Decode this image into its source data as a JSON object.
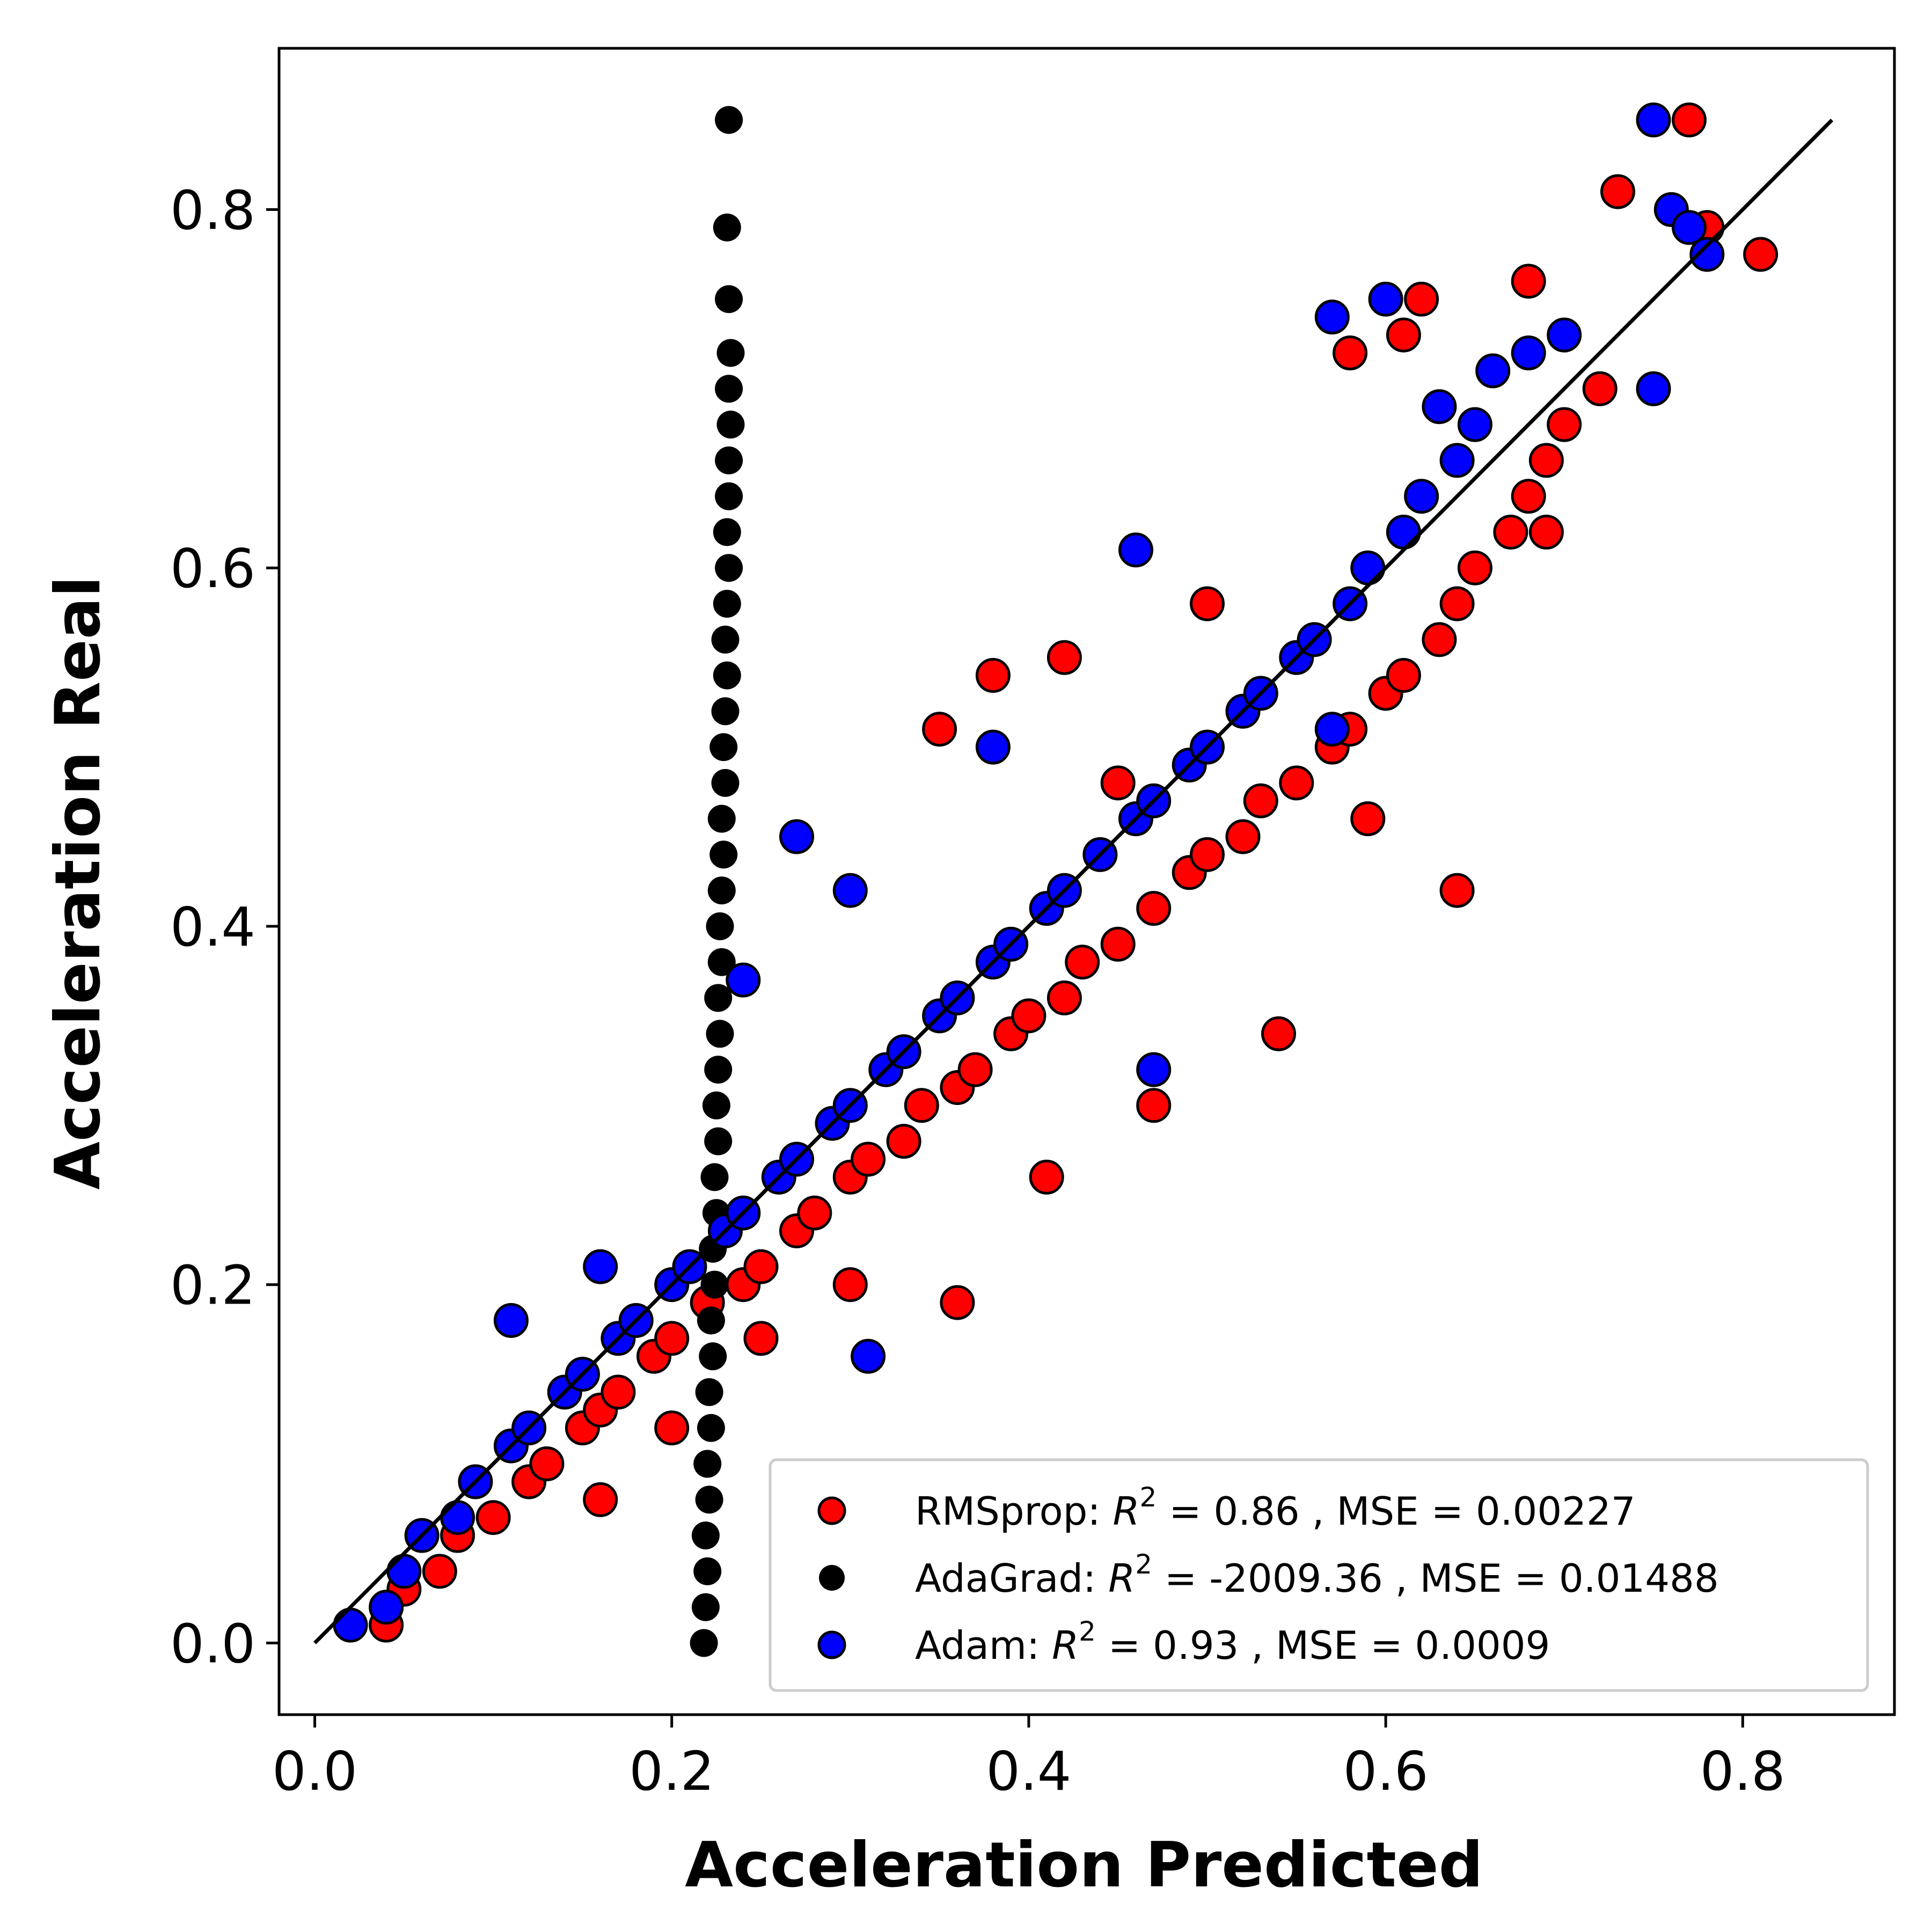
{
  "chart_data": {
    "type": "scatter",
    "xlabel": "Acceleration Predicted",
    "ylabel": "Acceleration Real",
    "xlim": [
      -0.02,
      0.885
    ],
    "ylim": [
      -0.04,
      0.89
    ],
    "xticks": [
      "0.0",
      "0.2",
      "0.4",
      "0.6",
      "0.8"
    ],
    "xtick_values": [
      0.0,
      0.2,
      0.4,
      0.6,
      0.8
    ],
    "yticks": [
      "0.0",
      "0.2",
      "0.4",
      "0.6",
      "0.8"
    ],
    "ytick_values": [
      0.0,
      0.2,
      0.4,
      0.6,
      0.8
    ],
    "grid": false,
    "legend_position": "lower-right",
    "reference_line": {
      "x": [
        0.0,
        0.85
      ],
      "y": [
        0.0,
        0.85
      ],
      "color": "#000000"
    },
    "series": [
      {
        "name": "RMSprop",
        "legend_prefix": "RMSprop: ",
        "legend_r2_symbol": "R",
        "legend_r2_exp": "2",
        "legend_suffix": " = 0.86 , MSE = 0.00227",
        "color": "#ff0000",
        "x": [
          0.04,
          0.05,
          0.07,
          0.08,
          0.1,
          0.12,
          0.13,
          0.15,
          0.16,
          0.17,
          0.19,
          0.2,
          0.22,
          0.24,
          0.25,
          0.27,
          0.28,
          0.3,
          0.31,
          0.33,
          0.34,
          0.36,
          0.37,
          0.39,
          0.4,
          0.42,
          0.43,
          0.45,
          0.47,
          0.49,
          0.5,
          0.52,
          0.53,
          0.55,
          0.57,
          0.58,
          0.6,
          0.61,
          0.63,
          0.64,
          0.65,
          0.67,
          0.68,
          0.69,
          0.7,
          0.72,
          0.73,
          0.77,
          0.78,
          0.81,
          0.16,
          0.2,
          0.25,
          0.3,
          0.36,
          0.41,
          0.47,
          0.54,
          0.64,
          0.38,
          0.35,
          0.42,
          0.5,
          0.62,
          0.68,
          0.69,
          0.58,
          0.61,
          0.59,
          0.45
        ],
        "y": [
          0.01,
          0.03,
          0.04,
          0.06,
          0.07,
          0.09,
          0.1,
          0.12,
          0.13,
          0.14,
          0.16,
          0.17,
          0.19,
          0.2,
          0.21,
          0.23,
          0.24,
          0.26,
          0.27,
          0.28,
          0.3,
          0.31,
          0.32,
          0.34,
          0.35,
          0.36,
          0.38,
          0.39,
          0.41,
          0.43,
          0.44,
          0.45,
          0.47,
          0.48,
          0.5,
          0.51,
          0.53,
          0.54,
          0.56,
          0.58,
          0.6,
          0.62,
          0.64,
          0.66,
          0.68,
          0.7,
          0.81,
          0.85,
          0.79,
          0.775,
          0.08,
          0.12,
          0.17,
          0.2,
          0.19,
          0.26,
          0.3,
          0.34,
          0.42,
          0.54,
          0.51,
          0.55,
          0.58,
          0.75,
          0.76,
          0.62,
          0.72,
          0.73,
          0.46,
          0.48
        ]
      },
      {
        "name": "AdaGrad",
        "legend_prefix": "AdaGrad: ",
        "legend_r2_symbol": "R",
        "legend_r2_exp": "2",
        "legend_suffix": " = -2009.36 , MSE = 0.01488",
        "color": "#000000",
        "x": [
          0.218,
          0.219,
          0.22,
          0.219,
          0.221,
          0.22,
          0.222,
          0.221,
          0.223,
          0.222,
          0.224,
          0.223,
          0.225,
          0.224,
          0.226,
          0.225,
          0.226,
          0.227,
          0.226,
          0.228,
          0.227,
          0.228,
          0.229,
          0.228,
          0.23,
          0.229,
          0.23,
          0.231,
          0.23,
          0.231,
          0.232,
          0.231,
          0.232,
          0.232,
          0.233,
          0.232,
          0.233,
          0.232,
          0.231,
          0.232
        ],
        "y": [
          0.0,
          0.02,
          0.04,
          0.06,
          0.08,
          0.1,
          0.12,
          0.14,
          0.16,
          0.18,
          0.2,
          0.22,
          0.24,
          0.26,
          0.28,
          0.3,
          0.32,
          0.34,
          0.36,
          0.38,
          0.4,
          0.42,
          0.44,
          0.46,
          0.48,
          0.5,
          0.52,
          0.54,
          0.56,
          0.58,
          0.6,
          0.62,
          0.64,
          0.66,
          0.68,
          0.7,
          0.72,
          0.75,
          0.79,
          0.85
        ]
      },
      {
        "name": "Adam",
        "legend_prefix": "Adam: ",
        "legend_r2_symbol": "R",
        "legend_r2_exp": "2",
        "legend_suffix": " = 0.93 , MSE = 0.0009",
        "color": "#0000ff",
        "x": [
          0.02,
          0.04,
          0.05,
          0.06,
          0.08,
          0.09,
          0.11,
          0.12,
          0.14,
          0.15,
          0.17,
          0.18,
          0.2,
          0.21,
          0.23,
          0.24,
          0.26,
          0.27,
          0.29,
          0.3,
          0.32,
          0.33,
          0.35,
          0.36,
          0.38,
          0.39,
          0.41,
          0.42,
          0.44,
          0.46,
          0.47,
          0.49,
          0.5,
          0.52,
          0.53,
          0.55,
          0.56,
          0.58,
          0.59,
          0.61,
          0.62,
          0.64,
          0.65,
          0.66,
          0.68,
          0.7,
          0.75,
          0.76,
          0.77,
          0.78,
          0.11,
          0.16,
          0.27,
          0.3,
          0.24,
          0.31,
          0.46,
          0.57,
          0.6,
          0.63,
          0.57,
          0.75,
          0.47,
          0.38
        ],
        "y": [
          0.01,
          0.02,
          0.04,
          0.06,
          0.07,
          0.09,
          0.11,
          0.12,
          0.14,
          0.15,
          0.17,
          0.18,
          0.2,
          0.21,
          0.23,
          0.24,
          0.26,
          0.27,
          0.29,
          0.3,
          0.32,
          0.33,
          0.35,
          0.36,
          0.38,
          0.39,
          0.41,
          0.42,
          0.44,
          0.46,
          0.47,
          0.49,
          0.5,
          0.52,
          0.53,
          0.55,
          0.56,
          0.58,
          0.6,
          0.62,
          0.64,
          0.66,
          0.68,
          0.71,
          0.72,
          0.73,
          0.85,
          0.8,
          0.79,
          0.775,
          0.18,
          0.21,
          0.45,
          0.42,
          0.37,
          0.16,
          0.61,
          0.74,
          0.75,
          0.69,
          0.51,
          0.7,
          0.32,
          0.5
        ]
      }
    ]
  }
}
